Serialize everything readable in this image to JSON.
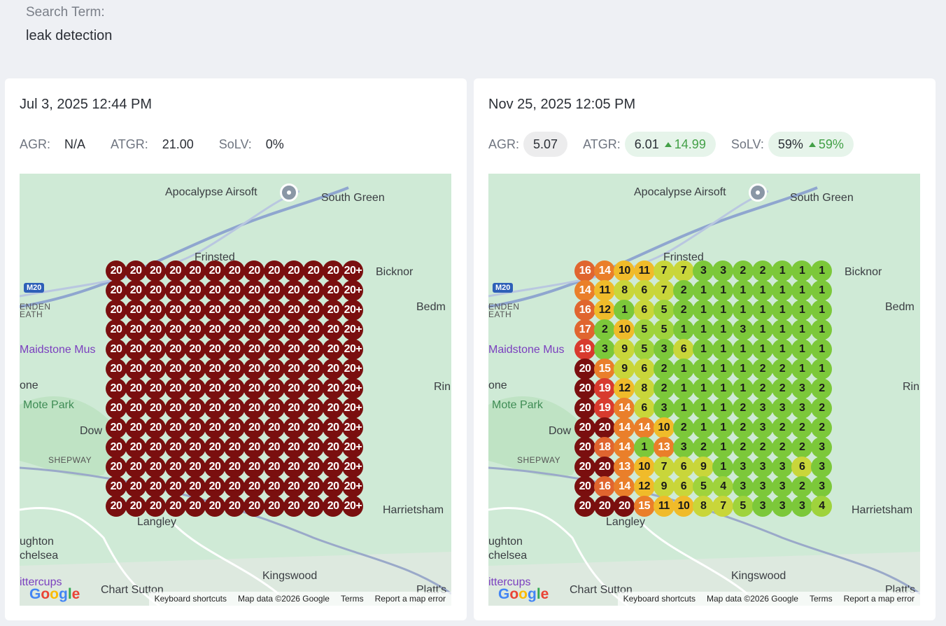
{
  "search": {
    "label": "Search Term:",
    "value": "leak detection"
  },
  "colors": {
    "rank_20": "#7a0f0f",
    "rank_19": "#d83a2e",
    "rank_16_18": "#e0652f",
    "rank_13_15": "#ea7f2a",
    "rank_10_12": "#f0bb2a",
    "rank_6_9": "#c9d63a",
    "rank_4_5": "#9fd33c",
    "rank_1_3": "#7cc83a",
    "delta_up": "#43a047"
  },
  "map": {
    "labels": {
      "airsoft": "Apocalypse Airsoft",
      "south_green": "South Green",
      "bicknor": "Bicknor",
      "frinsted": "Frinsted",
      "m20": "M20",
      "benden": "ENDEN",
      "heath": "EATH",
      "maidstone": "Maidstone Mus",
      "bedm": "Bedm",
      "one": "one",
      "mote_park": "Mote Park",
      "down": "Dow",
      "rin": "Rin",
      "shepway": "SHEPWAY",
      "harrietsham": "Harrietsham",
      "langley": "Langley",
      "oughton": "ughton",
      "chelsea": "chelsea",
      "kingswood": "Kingswood",
      "chart_sutton": "Chart Sutton",
      "platts": "Platt's",
      "buttercups": "ittercups"
    },
    "google_logo": [
      "G",
      "o",
      "o",
      "g",
      "l",
      "e"
    ],
    "attribution": {
      "keyboard": "Keyboard shortcuts",
      "data": "Map data ©2026 Google",
      "terms": "Terms",
      "report": "Report a map error"
    }
  },
  "scans": [
    {
      "date": "Jul 3, 2025 12:44 PM",
      "metrics": {
        "agr": {
          "label": "AGR:",
          "value": "N/A"
        },
        "atgr": {
          "label": "ATGR:",
          "value": "21.00"
        },
        "solv": {
          "label": "SoLV:",
          "value": "0%"
        }
      },
      "grid": [
        [
          "20",
          "20",
          "20",
          "20",
          "20",
          "20",
          "20",
          "20",
          "20",
          "20",
          "20",
          "20",
          "20+"
        ],
        [
          "20",
          "20",
          "20",
          "20",
          "20",
          "20",
          "20",
          "20",
          "20",
          "20",
          "20",
          "20",
          "20+"
        ],
        [
          "20",
          "20",
          "20",
          "20",
          "20",
          "20",
          "20",
          "20",
          "20",
          "20",
          "20",
          "20",
          "20+"
        ],
        [
          "20",
          "20",
          "20",
          "20",
          "20",
          "20",
          "20",
          "20",
          "20",
          "20",
          "20",
          "20",
          "20+"
        ],
        [
          "20",
          "20",
          "20",
          "20",
          "20",
          "20",
          "20",
          "20",
          "20",
          "20",
          "20",
          "20",
          "20+"
        ],
        [
          "20",
          "20",
          "20",
          "20",
          "20",
          "20",
          "20",
          "20",
          "20",
          "20",
          "20",
          "20",
          "20+"
        ],
        [
          "20",
          "20",
          "20",
          "20",
          "20",
          "20",
          "20",
          "20",
          "20",
          "20",
          "20",
          "20",
          "20+"
        ],
        [
          "20",
          "20",
          "20",
          "20",
          "20",
          "20",
          "20",
          "20",
          "20",
          "20",
          "20",
          "20",
          "20+"
        ],
        [
          "20",
          "20",
          "20",
          "20",
          "20",
          "20",
          "20",
          "20",
          "20",
          "20",
          "20",
          "20",
          "20+"
        ],
        [
          "20",
          "20",
          "20",
          "20",
          "20",
          "20",
          "20",
          "20",
          "20",
          "20",
          "20",
          "20",
          "20+"
        ],
        [
          "20",
          "20",
          "20",
          "20",
          "20",
          "20",
          "20",
          "20",
          "20",
          "20",
          "20",
          "20",
          "20+"
        ],
        [
          "20",
          "20",
          "20",
          "20",
          "20",
          "20",
          "20",
          "20",
          "20",
          "20",
          "20",
          "20",
          "20+"
        ],
        [
          "20",
          "20",
          "20",
          "20",
          "20",
          "20",
          "20",
          "20",
          "20",
          "20",
          "20",
          "20",
          "20+"
        ]
      ]
    },
    {
      "date": "Nov 25, 2025 12:05 PM",
      "metrics": {
        "agr": {
          "label": "AGR:",
          "value": "5.07"
        },
        "atgr": {
          "label": "ATGR:",
          "value": "6.01",
          "delta": "14.99"
        },
        "solv": {
          "label": "SoLV:",
          "value": "59%",
          "delta": "59%"
        }
      },
      "grid": [
        [
          "16",
          "14",
          "10",
          "11",
          "7",
          "7",
          "3",
          "3",
          "2",
          "2",
          "1",
          "1",
          "1"
        ],
        [
          "14",
          "11",
          "8",
          "6",
          "7",
          "2",
          "1",
          "1",
          "1",
          "1",
          "1",
          "1",
          "1"
        ],
        [
          "16",
          "12",
          "1",
          "6",
          "5",
          "2",
          "1",
          "1",
          "1",
          "1",
          "1",
          "1",
          "1"
        ],
        [
          "17",
          "2",
          "10",
          "5",
          "5",
          "1",
          "1",
          "1",
          "3",
          "1",
          "1",
          "1",
          "1"
        ],
        [
          "19",
          "3",
          "9",
          "5",
          "3",
          "6",
          "1",
          "1",
          "1",
          "1",
          "1",
          "1",
          "1"
        ],
        [
          "20",
          "15",
          "9",
          "6",
          "2",
          "1",
          "1",
          "1",
          "1",
          "2",
          "2",
          "1",
          "1"
        ],
        [
          "20",
          "19",
          "12",
          "8",
          "2",
          "1",
          "1",
          "1",
          "1",
          "2",
          "2",
          "3",
          "2"
        ],
        [
          "20",
          "19",
          "14",
          "6",
          "3",
          "1",
          "1",
          "1",
          "2",
          "3",
          "3",
          "3",
          "2"
        ],
        [
          "20",
          "20",
          "14",
          "14",
          "10",
          "2",
          "1",
          "1",
          "2",
          "3",
          "2",
          "2",
          "2"
        ],
        [
          "20",
          "18",
          "14",
          "1",
          "13",
          "3",
          "2",
          "1",
          "2",
          "2",
          "2",
          "2",
          "3"
        ],
        [
          "20",
          "20",
          "13",
          "10",
          "7",
          "6",
          "9",
          "1",
          "3",
          "3",
          "3",
          "6",
          "3"
        ],
        [
          "20",
          "16",
          "14",
          "12",
          "9",
          "6",
          "5",
          "4",
          "3",
          "3",
          "3",
          "2",
          "3"
        ],
        [
          "20",
          "20",
          "20",
          "15",
          "11",
          "10",
          "8",
          "7",
          "5",
          "3",
          "3",
          "3",
          "4"
        ]
      ]
    }
  ]
}
